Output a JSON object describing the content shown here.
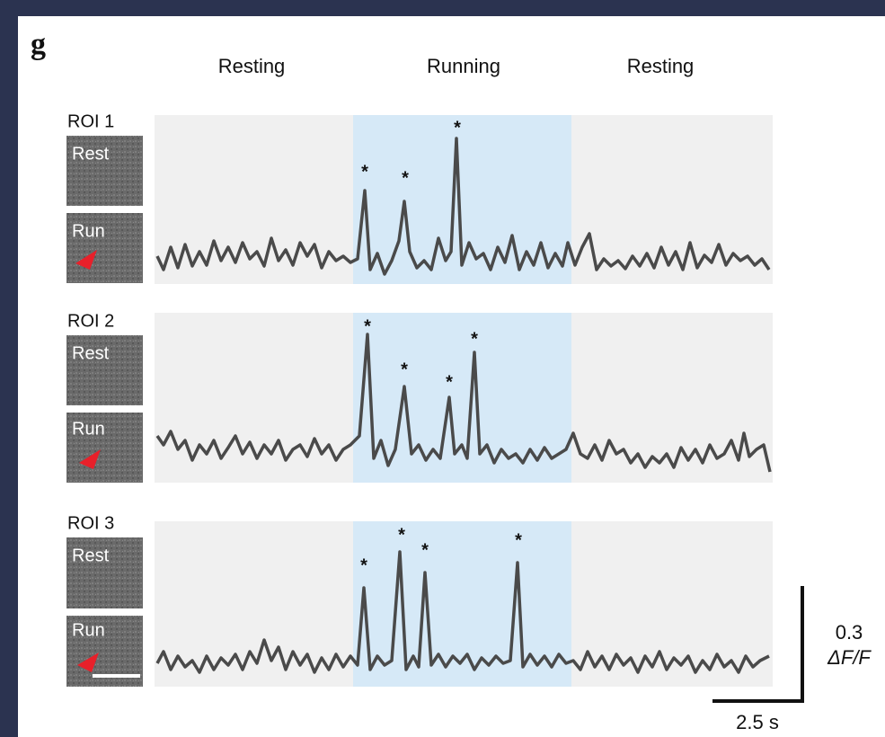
{
  "panel_label": "g",
  "conditions": [
    "Resting",
    "Running",
    "Resting"
  ],
  "rois": [
    {
      "label": "ROI 1",
      "images": [
        "Rest",
        "Run"
      ],
      "markers": [
        "*",
        "*",
        "*"
      ]
    },
    {
      "label": "ROI 2",
      "images": [
        "Rest",
        "Run"
      ],
      "markers": [
        "*",
        "*",
        "*",
        "*"
      ]
    },
    {
      "label": "ROI 3",
      "images": [
        "Rest",
        "Run"
      ],
      "markers": [
        "*",
        "*",
        "*",
        "*"
      ]
    }
  ],
  "scale_bar": {
    "y_value": "0.3",
    "y_unit": "ΔF/F",
    "x_label": "2.5 s"
  }
}
